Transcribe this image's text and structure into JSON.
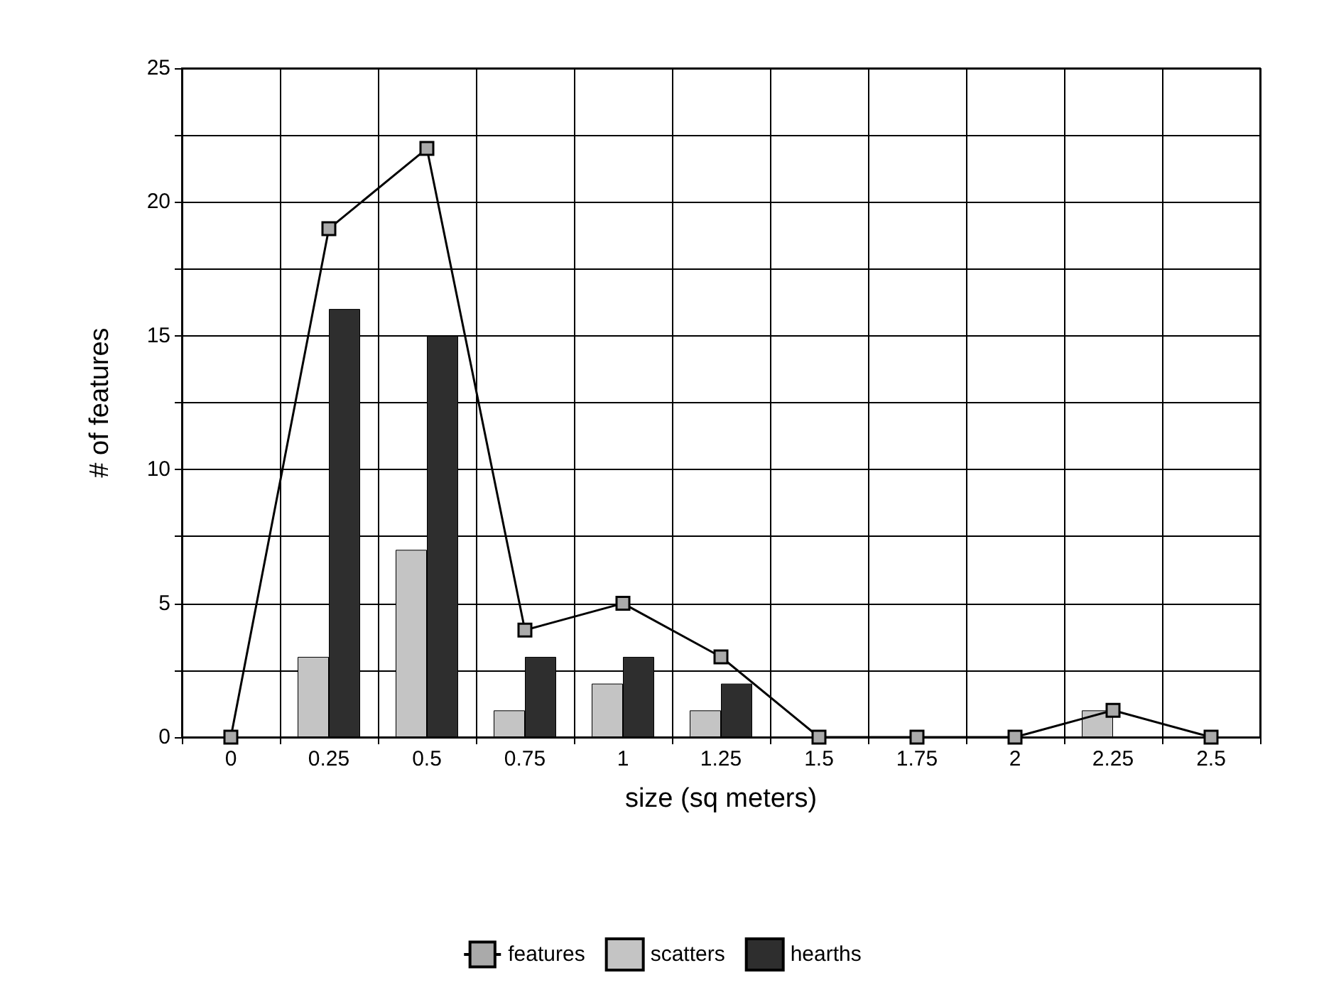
{
  "chart_data": {
    "type": "bar",
    "xlabel": "size (sq meters)",
    "ylabel": "# of features",
    "categories": [
      "0",
      "0.25",
      "0.5",
      "0.75",
      "1",
      "1.25",
      "1.5",
      "1.75",
      "2",
      "2.25",
      "2.5"
    ],
    "series": [
      {
        "name": "features",
        "type": "line",
        "color": "#000000",
        "marker": "square",
        "values": [
          0,
          19,
          22,
          4,
          5,
          3,
          0,
          0,
          0,
          1,
          0
        ]
      },
      {
        "name": "scatters",
        "color": "#c4c4c4",
        "values": [
          null,
          3,
          7,
          1,
          2,
          1,
          null,
          null,
          null,
          1,
          null
        ]
      },
      {
        "name": "hearths",
        "color": "#2e2e2e",
        "values": [
          null,
          16,
          15,
          3,
          3,
          2,
          null,
          null,
          null,
          null,
          null
        ]
      }
    ],
    "ylim": [
      0,
      25
    ],
    "yticks": [
      0,
      {
        "value": 2.5,
        "label": null
      },
      5,
      {
        "value": 7.5,
        "label": null
      },
      10,
      {
        "value": 12.5,
        "label": null
      },
      15,
      {
        "value": 17.5,
        "label": null
      },
      20,
      {
        "value": 22.5,
        "label": null
      },
      25
    ],
    "grid": true,
    "legend": "bottom"
  }
}
